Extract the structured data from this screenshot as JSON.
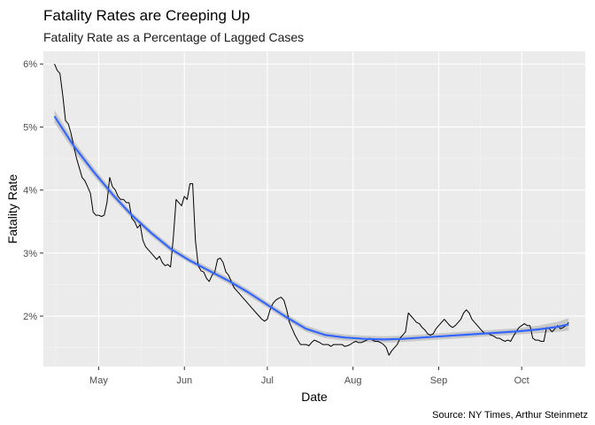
{
  "chart_data": {
    "type": "line",
    "title": "Fatality Rates are Creeping Up",
    "subtitle": "Fatality Rate as a Percentage of Lagged Cases",
    "xlabel": "Date",
    "ylabel": "Fatality Rate",
    "caption": "Source: NY Times, Arthur Steinmetz",
    "x_ticks": [
      {
        "label": "May",
        "date": "2020-05-01"
      },
      {
        "label": "Jun",
        "date": "2020-06-01"
      },
      {
        "label": "Jul",
        "date": "2020-07-01"
      },
      {
        "label": "Aug",
        "date": "2020-08-01"
      },
      {
        "label": "Sep",
        "date": "2020-09-01"
      },
      {
        "label": "Oct",
        "date": "2020-10-01"
      }
    ],
    "y_ticks": [
      {
        "label": "2%",
        "value": 2
      },
      {
        "label": "3%",
        "value": 3
      },
      {
        "label": "4%",
        "value": 4
      },
      {
        "label": "5%",
        "value": 5
      },
      {
        "label": "6%",
        "value": 6
      }
    ],
    "xlim": [
      "2020-04-11",
      "2020-10-24"
    ],
    "ylim": [
      1.2,
      6.2
    ],
    "grid": true,
    "background": "#ebebeb",
    "series": [
      {
        "kind": "raw",
        "color": "#000000",
        "points": [
          [
            "2020-04-15",
            6.0
          ],
          [
            "2020-04-16",
            5.9
          ],
          [
            "2020-04-17",
            5.85
          ],
          [
            "2020-04-18",
            5.5
          ],
          [
            "2020-04-19",
            5.1
          ],
          [
            "2020-04-20",
            5.05
          ],
          [
            "2020-04-21",
            4.9
          ],
          [
            "2020-04-22",
            4.7
          ],
          [
            "2020-04-23",
            4.5
          ],
          [
            "2020-04-24",
            4.35
          ],
          [
            "2020-04-25",
            4.2
          ],
          [
            "2020-04-26",
            4.15
          ],
          [
            "2020-04-27",
            4.05
          ],
          [
            "2020-04-28",
            3.95
          ],
          [
            "2020-04-29",
            3.65
          ],
          [
            "2020-04-30",
            3.6
          ],
          [
            "2020-05-01",
            3.6
          ],
          [
            "2020-05-02",
            3.58
          ],
          [
            "2020-05-03",
            3.6
          ],
          [
            "2020-05-04",
            3.8
          ],
          [
            "2020-05-05",
            4.2
          ],
          [
            "2020-05-06",
            4.05
          ],
          [
            "2020-05-07",
            4.0
          ],
          [
            "2020-05-08",
            3.9
          ],
          [
            "2020-05-09",
            3.85
          ],
          [
            "2020-05-10",
            3.85
          ],
          [
            "2020-05-11",
            3.8
          ],
          [
            "2020-05-12",
            3.8
          ],
          [
            "2020-05-13",
            3.55
          ],
          [
            "2020-05-14",
            3.5
          ],
          [
            "2020-05-15",
            3.4
          ],
          [
            "2020-05-16",
            3.45
          ],
          [
            "2020-05-17",
            3.2
          ],
          [
            "2020-05-18",
            3.1
          ],
          [
            "2020-05-19",
            3.05
          ],
          [
            "2020-05-20",
            3.0
          ],
          [
            "2020-05-21",
            2.95
          ],
          [
            "2020-05-22",
            2.9
          ],
          [
            "2020-05-23",
            2.95
          ],
          [
            "2020-05-24",
            2.85
          ],
          [
            "2020-05-25",
            2.8
          ],
          [
            "2020-05-26",
            2.82
          ],
          [
            "2020-05-27",
            2.78
          ],
          [
            "2020-05-28",
            3.25
          ],
          [
            "2020-05-29",
            3.85
          ],
          [
            "2020-05-30",
            3.8
          ],
          [
            "2020-05-31",
            3.75
          ],
          [
            "2020-06-01",
            3.9
          ],
          [
            "2020-06-02",
            3.85
          ],
          [
            "2020-06-03",
            4.1
          ],
          [
            "2020-06-04",
            4.1
          ],
          [
            "2020-06-05",
            3.2
          ],
          [
            "2020-06-06",
            2.8
          ],
          [
            "2020-06-07",
            2.72
          ],
          [
            "2020-06-08",
            2.7
          ],
          [
            "2020-06-09",
            2.6
          ],
          [
            "2020-06-10",
            2.55
          ],
          [
            "2020-06-11",
            2.65
          ],
          [
            "2020-06-12",
            2.7
          ],
          [
            "2020-06-13",
            2.9
          ],
          [
            "2020-06-14",
            2.92
          ],
          [
            "2020-06-15",
            2.85
          ],
          [
            "2020-06-16",
            2.7
          ],
          [
            "2020-06-17",
            2.65
          ],
          [
            "2020-06-18",
            2.55
          ],
          [
            "2020-06-19",
            2.45
          ],
          [
            "2020-06-20",
            2.4
          ],
          [
            "2020-06-21",
            2.35
          ],
          [
            "2020-06-22",
            2.3
          ],
          [
            "2020-06-23",
            2.25
          ],
          [
            "2020-06-24",
            2.2
          ],
          [
            "2020-06-25",
            2.15
          ],
          [
            "2020-06-26",
            2.1
          ],
          [
            "2020-06-27",
            2.05
          ],
          [
            "2020-06-28",
            2.0
          ],
          [
            "2020-06-29",
            1.95
          ],
          [
            "2020-06-30",
            1.92
          ],
          [
            "2020-07-01",
            1.95
          ],
          [
            "2020-07-02",
            2.1
          ],
          [
            "2020-07-03",
            2.2
          ],
          [
            "2020-07-04",
            2.25
          ],
          [
            "2020-07-05",
            2.28
          ],
          [
            "2020-07-06",
            2.3
          ],
          [
            "2020-07-07",
            2.25
          ],
          [
            "2020-07-08",
            2.1
          ],
          [
            "2020-07-09",
            1.9
          ],
          [
            "2020-07-10",
            1.8
          ],
          [
            "2020-07-11",
            1.7
          ],
          [
            "2020-07-12",
            1.62
          ],
          [
            "2020-07-13",
            1.55
          ],
          [
            "2020-07-14",
            1.55
          ],
          [
            "2020-07-15",
            1.55
          ],
          [
            "2020-07-16",
            1.53
          ],
          [
            "2020-07-17",
            1.58
          ],
          [
            "2020-07-18",
            1.62
          ],
          [
            "2020-07-19",
            1.6
          ],
          [
            "2020-07-20",
            1.58
          ],
          [
            "2020-07-21",
            1.55
          ],
          [
            "2020-07-22",
            1.55
          ],
          [
            "2020-07-23",
            1.55
          ],
          [
            "2020-07-24",
            1.52
          ],
          [
            "2020-07-25",
            1.55
          ],
          [
            "2020-07-26",
            1.55
          ],
          [
            "2020-07-27",
            1.55
          ],
          [
            "2020-07-28",
            1.55
          ],
          [
            "2020-07-29",
            1.52
          ],
          [
            "2020-07-30",
            1.53
          ],
          [
            "2020-07-31",
            1.55
          ],
          [
            "2020-08-01",
            1.58
          ],
          [
            "2020-08-02",
            1.6
          ],
          [
            "2020-08-03",
            1.58
          ],
          [
            "2020-08-04",
            1.58
          ],
          [
            "2020-08-05",
            1.6
          ],
          [
            "2020-08-06",
            1.62
          ],
          [
            "2020-08-07",
            1.65
          ],
          [
            "2020-08-08",
            1.62
          ],
          [
            "2020-08-09",
            1.6
          ],
          [
            "2020-08-10",
            1.6
          ],
          [
            "2020-08-11",
            1.58
          ],
          [
            "2020-08-12",
            1.55
          ],
          [
            "2020-08-13",
            1.5
          ],
          [
            "2020-08-14",
            1.38
          ],
          [
            "2020-08-15",
            1.45
          ],
          [
            "2020-08-16",
            1.5
          ],
          [
            "2020-08-17",
            1.55
          ],
          [
            "2020-08-18",
            1.65
          ],
          [
            "2020-08-19",
            1.7
          ],
          [
            "2020-08-20",
            1.75
          ],
          [
            "2020-08-21",
            2.05
          ],
          [
            "2020-08-22",
            2.0
          ],
          [
            "2020-08-23",
            1.95
          ],
          [
            "2020-08-24",
            1.9
          ],
          [
            "2020-08-25",
            1.88
          ],
          [
            "2020-08-26",
            1.82
          ],
          [
            "2020-08-27",
            1.78
          ],
          [
            "2020-08-28",
            1.72
          ],
          [
            "2020-08-29",
            1.7
          ],
          [
            "2020-08-30",
            1.72
          ],
          [
            "2020-08-31",
            1.8
          ],
          [
            "2020-09-01",
            1.85
          ],
          [
            "2020-09-02",
            1.9
          ],
          [
            "2020-09-03",
            1.95
          ],
          [
            "2020-09-04",
            1.9
          ],
          [
            "2020-09-05",
            1.85
          ],
          [
            "2020-09-06",
            1.82
          ],
          [
            "2020-09-07",
            1.85
          ],
          [
            "2020-09-08",
            1.9
          ],
          [
            "2020-09-09",
            1.95
          ],
          [
            "2020-09-10",
            2.05
          ],
          [
            "2020-09-11",
            2.1
          ],
          [
            "2020-09-12",
            2.05
          ],
          [
            "2020-09-13",
            1.95
          ],
          [
            "2020-09-14",
            1.9
          ],
          [
            "2020-09-15",
            1.85
          ],
          [
            "2020-09-16",
            1.8
          ],
          [
            "2020-09-17",
            1.75
          ],
          [
            "2020-09-18",
            1.72
          ],
          [
            "2020-09-19",
            1.72
          ],
          [
            "2020-09-20",
            1.7
          ],
          [
            "2020-09-21",
            1.68
          ],
          [
            "2020-09-22",
            1.65
          ],
          [
            "2020-09-23",
            1.65
          ],
          [
            "2020-09-24",
            1.62
          ],
          [
            "2020-09-25",
            1.6
          ],
          [
            "2020-09-26",
            1.62
          ],
          [
            "2020-09-27",
            1.6
          ],
          [
            "2020-09-28",
            1.68
          ],
          [
            "2020-09-29",
            1.75
          ],
          [
            "2020-09-30",
            1.82
          ],
          [
            "2020-10-01",
            1.85
          ],
          [
            "2020-10-02",
            1.88
          ],
          [
            "2020-10-03",
            1.85
          ],
          [
            "2020-10-04",
            1.85
          ],
          [
            "2020-10-05",
            1.65
          ],
          [
            "2020-10-06",
            1.62
          ],
          [
            "2020-10-07",
            1.62
          ],
          [
            "2020-10-08",
            1.6
          ],
          [
            "2020-10-09",
            1.6
          ],
          [
            "2020-10-10",
            1.82
          ],
          [
            "2020-10-11",
            1.8
          ],
          [
            "2020-10-12",
            1.75
          ],
          [
            "2020-10-13",
            1.8
          ],
          [
            "2020-10-14",
            1.85
          ],
          [
            "2020-10-15",
            1.8
          ],
          [
            "2020-10-16",
            1.82
          ],
          [
            "2020-10-17",
            1.85
          ],
          [
            "2020-10-18",
            1.9
          ]
        ]
      },
      {
        "kind": "smooth",
        "color": "#3366ff",
        "band_color": "#c4c4c4",
        "points": [
          [
            "2020-04-15",
            5.17,
            5.07,
            5.27
          ],
          [
            "2020-04-22",
            4.7,
            4.62,
            4.78
          ],
          [
            "2020-04-29",
            4.3,
            4.23,
            4.37
          ],
          [
            "2020-05-06",
            3.93,
            3.87,
            3.99
          ],
          [
            "2020-05-13",
            3.6,
            3.55,
            3.65
          ],
          [
            "2020-05-20",
            3.32,
            3.27,
            3.37
          ],
          [
            "2020-05-27",
            3.07,
            3.02,
            3.12
          ],
          [
            "2020-06-03",
            2.88,
            2.84,
            2.93
          ],
          [
            "2020-06-10",
            2.72,
            2.68,
            2.77
          ],
          [
            "2020-06-17",
            2.56,
            2.51,
            2.61
          ],
          [
            "2020-06-24",
            2.38,
            2.33,
            2.43
          ],
          [
            "2020-07-01",
            2.18,
            2.13,
            2.23
          ],
          [
            "2020-07-08",
            1.98,
            1.93,
            2.03
          ],
          [
            "2020-07-15",
            1.8,
            1.75,
            1.85
          ],
          [
            "2020-07-22",
            1.7,
            1.65,
            1.75
          ],
          [
            "2020-07-29",
            1.66,
            1.61,
            1.71
          ],
          [
            "2020-08-05",
            1.64,
            1.59,
            1.69
          ],
          [
            "2020-08-12",
            1.63,
            1.58,
            1.68
          ],
          [
            "2020-08-19",
            1.64,
            1.59,
            1.69
          ],
          [
            "2020-08-26",
            1.66,
            1.61,
            1.71
          ],
          [
            "2020-09-02",
            1.68,
            1.63,
            1.73
          ],
          [
            "2020-09-09",
            1.7,
            1.65,
            1.75
          ],
          [
            "2020-09-16",
            1.72,
            1.67,
            1.77
          ],
          [
            "2020-09-23",
            1.74,
            1.69,
            1.79
          ],
          [
            "2020-09-30",
            1.76,
            1.71,
            1.81
          ],
          [
            "2020-10-07",
            1.79,
            1.73,
            1.85
          ],
          [
            "2020-10-14",
            1.83,
            1.75,
            1.91
          ],
          [
            "2020-10-18",
            1.87,
            1.77,
            1.97
          ]
        ]
      }
    ]
  }
}
